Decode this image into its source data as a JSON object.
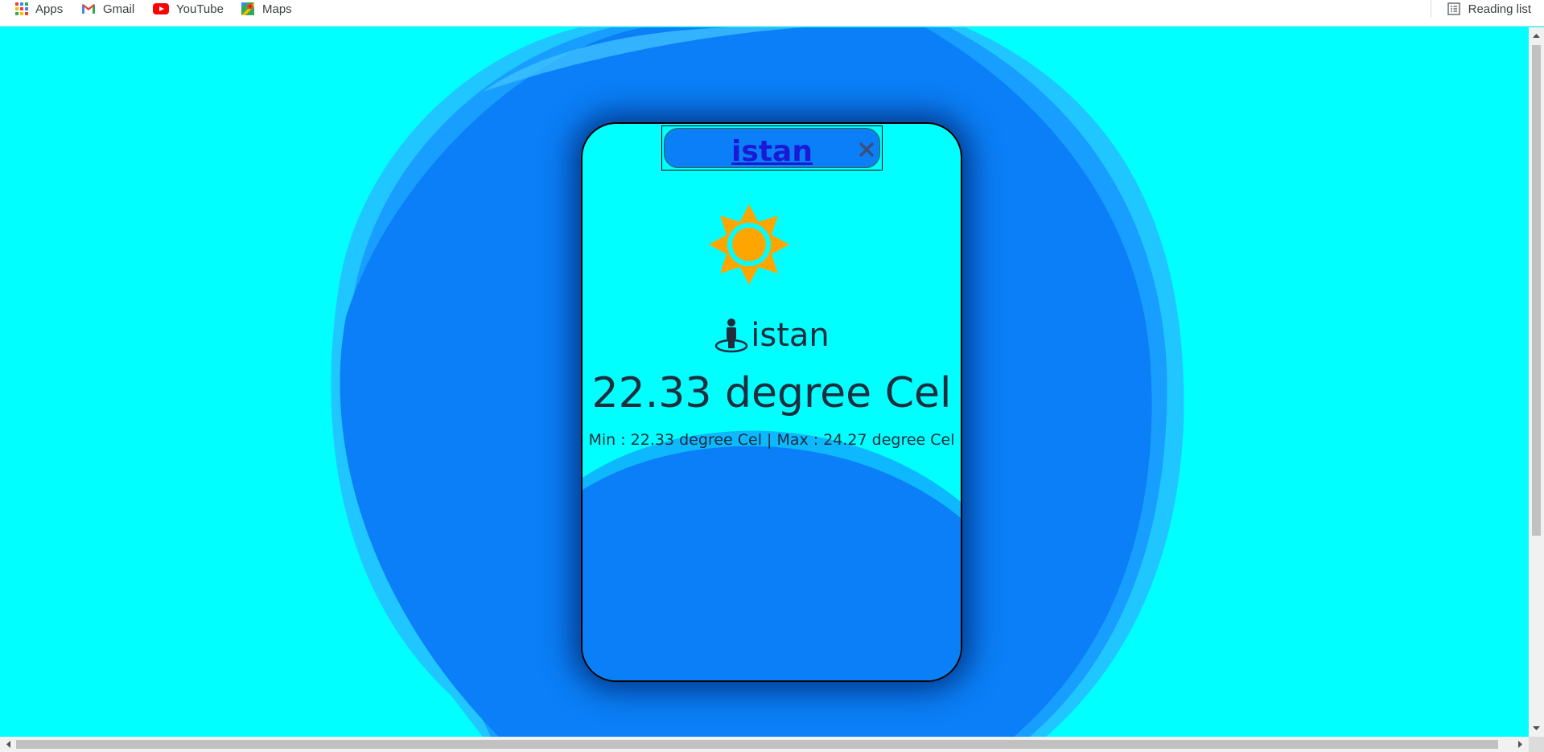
{
  "bookmarks": {
    "items": [
      {
        "label": "Apps",
        "icon": "apps-grid-icon"
      },
      {
        "label": "Gmail",
        "icon": "gmail-icon"
      },
      {
        "label": "YouTube",
        "icon": "youtube-icon"
      },
      {
        "label": "Maps",
        "icon": "maps-icon"
      }
    ],
    "reading_list": "Reading list"
  },
  "weather": {
    "search_value": "istan",
    "location": "istan",
    "temperature": "22.33 degree Cel",
    "min_max": "Min : 22.33 degree Cel | Max : 24.27 degree Cel",
    "icon": "sun-icon"
  },
  "colors": {
    "background": "#00ffff",
    "blob": "#0a7ff7",
    "sun": "#ffa500",
    "text": "#1f2d3d",
    "search_text": "#1a1ad6"
  }
}
